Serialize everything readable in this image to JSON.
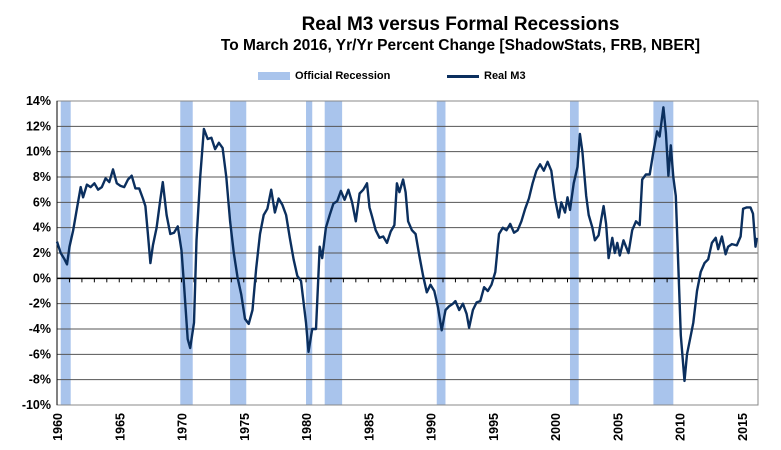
{
  "chart_data": {
    "type": "line",
    "title": "Real M3 versus Formal Recessions",
    "subtitle": "To March 2016, Yr/Yr Percent Change [ShadowStats, FRB, NBER]",
    "xlabel": "",
    "ylabel": "",
    "xlim": [
      1960,
      2016.3
    ],
    "ylim": [
      -10,
      14
    ],
    "grid": true,
    "legend_position": "top-center",
    "legend": [
      "Official Recession",
      "Real M3"
    ],
    "x_ticks": [
      "1960",
      "1965",
      "1970",
      "1975",
      "1980",
      "1985",
      "1990",
      "1995",
      "2000",
      "2005",
      "2010",
      "2015"
    ],
    "y_ticks": [
      "14%",
      "12%",
      "10%",
      "8%",
      "6%",
      "4%",
      "2%",
      "0%",
      "-2%",
      "-4%",
      "-6%",
      "-8%",
      "-10%"
    ],
    "recessions": [
      [
        1960.3,
        1961.1
      ],
      [
        1969.9,
        1970.9
      ],
      [
        1973.9,
        1975.2
      ],
      [
        1980.0,
        1980.5
      ],
      [
        1981.5,
        1982.9
      ],
      [
        1990.5,
        1991.2
      ],
      [
        2001.2,
        2001.9
      ],
      [
        2007.9,
        2009.5
      ]
    ],
    "series": [
      {
        "name": "Real M3",
        "color": "#0b2f5e",
        "points": [
          [
            1960,
            2.9
          ],
          [
            1960.3,
            2.0
          ],
          [
            1960.6,
            1.5
          ],
          [
            1960.8,
            1.1
          ],
          [
            1961.0,
            2.5
          ],
          [
            1961.3,
            3.8
          ],
          [
            1961.6,
            5.5
          ],
          [
            1961.9,
            7.2
          ],
          [
            1962.1,
            6.4
          ],
          [
            1962.4,
            7.4
          ],
          [
            1962.7,
            7.2
          ],
          [
            1963.0,
            7.5
          ],
          [
            1963.3,
            7.0
          ],
          [
            1963.6,
            7.2
          ],
          [
            1963.9,
            7.9
          ],
          [
            1964.2,
            7.6
          ],
          [
            1964.5,
            8.6
          ],
          [
            1964.8,
            7.5
          ],
          [
            1965.1,
            7.3
          ],
          [
            1965.4,
            7.2
          ],
          [
            1965.7,
            7.8
          ],
          [
            1966.0,
            8.1
          ],
          [
            1966.3,
            7.1
          ],
          [
            1966.6,
            7.1
          ],
          [
            1966.9,
            6.3
          ],
          [
            1967.1,
            5.7
          ],
          [
            1967.3,
            3.5
          ],
          [
            1967.5,
            1.2
          ],
          [
            1967.7,
            2.6
          ],
          [
            1968.0,
            4.0
          ],
          [
            1968.3,
            6.2
          ],
          [
            1968.5,
            7.6
          ],
          [
            1968.8,
            5.0
          ],
          [
            1969.1,
            3.5
          ],
          [
            1969.4,
            3.6
          ],
          [
            1969.7,
            4.1
          ],
          [
            1970.0,
            2.2
          ],
          [
            1970.2,
            -0.5
          ],
          [
            1970.5,
            -4.8
          ],
          [
            1970.7,
            -5.5
          ],
          [
            1971.0,
            -3.5
          ],
          [
            1971.2,
            3.0
          ],
          [
            1971.5,
            8.0
          ],
          [
            1971.8,
            11.8
          ],
          [
            1972.1,
            11.0
          ],
          [
            1972.4,
            11.1
          ],
          [
            1972.7,
            10.2
          ],
          [
            1973.0,
            10.7
          ],
          [
            1973.3,
            10.3
          ],
          [
            1973.6,
            8.0
          ],
          [
            1973.9,
            4.5
          ],
          [
            1974.2,
            2.0
          ],
          [
            1974.5,
            0.1
          ],
          [
            1974.8,
            -1.3
          ],
          [
            1975.1,
            -3.2
          ],
          [
            1975.4,
            -3.6
          ],
          [
            1975.7,
            -2.5
          ],
          [
            1976.0,
            0.8
          ],
          [
            1976.3,
            3.5
          ],
          [
            1976.6,
            5.0
          ],
          [
            1976.9,
            5.5
          ],
          [
            1977.2,
            7.0
          ],
          [
            1977.5,
            5.2
          ],
          [
            1977.8,
            6.3
          ],
          [
            1978.1,
            5.8
          ],
          [
            1978.4,
            5.0
          ],
          [
            1978.7,
            3.2
          ],
          [
            1979.0,
            1.5
          ],
          [
            1979.3,
            0.2
          ],
          [
            1979.6,
            -0.2
          ],
          [
            1980.0,
            -3.5
          ],
          [
            1980.2,
            -5.8
          ],
          [
            1980.5,
            -4.0
          ],
          [
            1980.8,
            -4.0
          ],
          [
            1981.1,
            2.5
          ],
          [
            1981.3,
            1.6
          ],
          [
            1981.6,
            4.0
          ],
          [
            1981.9,
            5.0
          ],
          [
            1982.2,
            5.9
          ],
          [
            1982.5,
            6.1
          ],
          [
            1982.8,
            6.9
          ],
          [
            1983.1,
            6.2
          ],
          [
            1983.4,
            7.0
          ],
          [
            1983.7,
            6.0
          ],
          [
            1984.0,
            4.5
          ],
          [
            1984.3,
            6.7
          ],
          [
            1984.6,
            7.0
          ],
          [
            1984.9,
            7.5
          ],
          [
            1985.1,
            5.6
          ],
          [
            1985.3,
            4.9
          ],
          [
            1985.6,
            3.8
          ],
          [
            1985.9,
            3.2
          ],
          [
            1986.2,
            3.3
          ],
          [
            1986.5,
            2.8
          ],
          [
            1986.8,
            3.7
          ],
          [
            1987.1,
            4.2
          ],
          [
            1987.3,
            7.5
          ],
          [
            1987.5,
            6.8
          ],
          [
            1987.8,
            7.8
          ],
          [
            1988.0,
            6.8
          ],
          [
            1988.2,
            4.5
          ],
          [
            1988.5,
            3.8
          ],
          [
            1988.8,
            3.5
          ],
          [
            1989.1,
            1.8
          ],
          [
            1989.4,
            0.2
          ],
          [
            1989.7,
            -1.1
          ],
          [
            1990.0,
            -0.5
          ],
          [
            1990.3,
            -1.0
          ],
          [
            1990.6,
            -2.3
          ],
          [
            1990.9,
            -4.1
          ],
          [
            1991.2,
            -2.5
          ],
          [
            1991.5,
            -2.2
          ],
          [
            1991.8,
            -2.0
          ],
          [
            1992.0,
            -1.8
          ],
          [
            1992.3,
            -2.5
          ],
          [
            1992.6,
            -2.0
          ],
          [
            1992.9,
            -2.8
          ],
          [
            1993.1,
            -3.9
          ],
          [
            1993.4,
            -2.5
          ],
          [
            1993.7,
            -1.9
          ],
          [
            1994.0,
            -1.8
          ],
          [
            1994.3,
            -0.7
          ],
          [
            1994.6,
            -1.0
          ],
          [
            1994.9,
            -0.5
          ],
          [
            1995.2,
            0.5
          ],
          [
            1995.5,
            3.5
          ],
          [
            1995.8,
            4.0
          ],
          [
            1996.1,
            3.8
          ],
          [
            1996.4,
            4.3
          ],
          [
            1996.7,
            3.6
          ],
          [
            1997.0,
            3.8
          ],
          [
            1997.3,
            4.5
          ],
          [
            1997.6,
            5.5
          ],
          [
            1997.9,
            6.3
          ],
          [
            1998.2,
            7.5
          ],
          [
            1998.5,
            8.5
          ],
          [
            1998.8,
            9.0
          ],
          [
            1999.1,
            8.5
          ],
          [
            1999.4,
            9.2
          ],
          [
            1999.7,
            8.5
          ],
          [
            2000.0,
            6.3
          ],
          [
            2000.3,
            4.8
          ],
          [
            2000.5,
            6.0
          ],
          [
            2000.8,
            5.2
          ],
          [
            2001.0,
            6.4
          ],
          [
            2001.2,
            5.4
          ],
          [
            2001.5,
            7.5
          ],
          [
            2001.8,
            8.8
          ],
          [
            2002.0,
            11.4
          ],
          [
            2002.2,
            10.0
          ],
          [
            2002.5,
            6.5
          ],
          [
            2002.7,
            5.0
          ],
          [
            2003.0,
            4.0
          ],
          [
            2003.2,
            3.0
          ],
          [
            2003.5,
            3.4
          ],
          [
            2003.7,
            4.6
          ],
          [
            2003.9,
            5.7
          ],
          [
            2004.1,
            4.3
          ],
          [
            2004.3,
            1.6
          ],
          [
            2004.6,
            3.2
          ],
          [
            2004.8,
            2.0
          ],
          [
            2005.0,
            2.8
          ],
          [
            2005.2,
            1.8
          ],
          [
            2005.5,
            3.0
          ],
          [
            2005.7,
            2.5
          ],
          [
            2005.9,
            2.0
          ],
          [
            2006.2,
            3.8
          ],
          [
            2006.5,
            4.5
          ],
          [
            2006.8,
            4.2
          ],
          [
            2007.0,
            7.8
          ],
          [
            2007.3,
            8.2
          ],
          [
            2007.6,
            8.2
          ],
          [
            2007.9,
            10.0
          ],
          [
            2008.2,
            11.6
          ],
          [
            2008.4,
            11.2
          ],
          [
            2008.7,
            13.5
          ],
          [
            2008.9,
            11.5
          ],
          [
            2009.1,
            8.1
          ],
          [
            2009.3,
            10.5
          ],
          [
            2009.5,
            8.0
          ],
          [
            2009.7,
            6.5
          ],
          [
            2009.9,
            1.0
          ],
          [
            2010.1,
            -4.5
          ],
          [
            2010.4,
            -8.1
          ],
          [
            2010.6,
            -6.0
          ],
          [
            2010.9,
            -4.5
          ],
          [
            2011.1,
            -3.5
          ],
          [
            2011.4,
            -1.0
          ],
          [
            2011.7,
            0.5
          ],
          [
            2012.0,
            1.2
          ],
          [
            2012.3,
            1.5
          ],
          [
            2012.6,
            2.8
          ],
          [
            2012.9,
            3.2
          ],
          [
            2013.1,
            2.3
          ],
          [
            2013.4,
            3.3
          ],
          [
            2013.7,
            1.9
          ],
          [
            2013.9,
            2.5
          ],
          [
            2014.2,
            2.7
          ],
          [
            2014.6,
            2.6
          ],
          [
            2014.9,
            3.3
          ],
          [
            2015.1,
            5.5
          ],
          [
            2015.4,
            5.6
          ],
          [
            2015.7,
            5.6
          ],
          [
            2015.9,
            5.1
          ],
          [
            2016.1,
            2.5
          ],
          [
            2016.2,
            3.2
          ]
        ]
      }
    ]
  }
}
